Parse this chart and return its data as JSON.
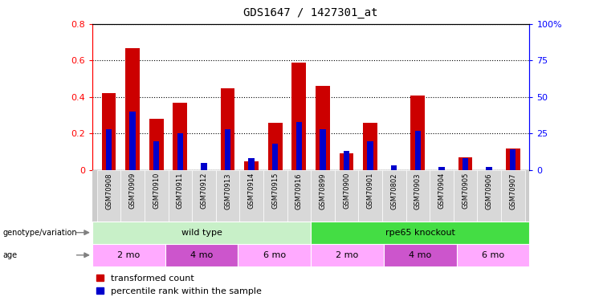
{
  "title": "GDS1647 / 1427301_at",
  "samples": [
    "GSM70908",
    "GSM70909",
    "GSM70910",
    "GSM70911",
    "GSM70912",
    "GSM70913",
    "GSM70914",
    "GSM70915",
    "GSM70916",
    "GSM70899",
    "GSM70900",
    "GSM70901",
    "GSM70802",
    "GSM70903",
    "GSM70904",
    "GSM70905",
    "GSM70906",
    "GSM70907"
  ],
  "red_values": [
    0.42,
    0.67,
    0.28,
    0.37,
    0.0,
    0.45,
    0.05,
    0.26,
    0.59,
    0.46,
    0.09,
    0.26,
    0.0,
    0.41,
    0.0,
    0.07,
    0.0,
    0.12
  ],
  "blue_values_pct": [
    28,
    40,
    20,
    25,
    5,
    28,
    8,
    18,
    33,
    28,
    13,
    20,
    3,
    27,
    2,
    8,
    2,
    14
  ],
  "groups": [
    {
      "label": "wild type",
      "start": 0,
      "end": 9,
      "color": "#c8f0c8"
    },
    {
      "label": "rpe65 knockout",
      "start": 9,
      "end": 18,
      "color": "#44dd44"
    }
  ],
  "age_groups": [
    {
      "label": "2 mo",
      "start": 0,
      "end": 3,
      "color": "#ffaaff"
    },
    {
      "label": "4 mo",
      "start": 3,
      "end": 6,
      "color": "#dd66dd"
    },
    {
      "label": "6 mo",
      "start": 6,
      "end": 9,
      "color": "#ffaaff"
    },
    {
      "label": "2 mo",
      "start": 9,
      "end": 12,
      "color": "#ffaaff"
    },
    {
      "label": "4 mo",
      "start": 12,
      "end": 15,
      "color": "#dd66dd"
    },
    {
      "label": "6 mo",
      "start": 15,
      "end": 18,
      "color": "#ffaaff"
    }
  ],
  "ylim_left": [
    0,
    0.8
  ],
  "ylim_right": [
    0,
    100
  ],
  "yticks_left": [
    0.0,
    0.2,
    0.4,
    0.6,
    0.8
  ],
  "yticks_right": [
    0,
    25,
    50,
    75,
    100
  ],
  "ytick_labels_right": [
    "0",
    "25",
    "50",
    "75",
    "100%"
  ],
  "red_color": "#cc0000",
  "blue_color": "#0000cc",
  "bar_width": 0.6,
  "blue_bar_width": 0.25,
  "legend_items": [
    "transformed count",
    "percentile rank within the sample"
  ],
  "legend_colors": [
    "#cc0000",
    "#0000cc"
  ],
  "plot_bg": "#ffffff"
}
